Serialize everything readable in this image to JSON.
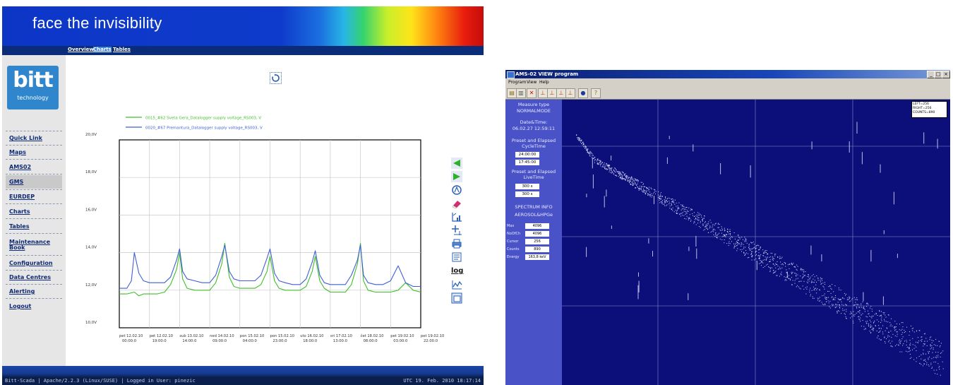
{
  "web": {
    "banner_title": "face the invisibility",
    "topnav": {
      "overview": "Overview",
      "charts": "Charts",
      "tables": "Tables"
    },
    "logo": {
      "main": "bitt",
      "sub": "technology"
    },
    "menu": [
      {
        "label": "Quick Link"
      },
      {
        "label": "Maps"
      },
      {
        "label": "AMS02"
      },
      {
        "label": "GMS"
      },
      {
        "label": "EURDEP"
      },
      {
        "label": "Charts"
      },
      {
        "label": "Tables"
      },
      {
        "label": "Maintenance Book"
      },
      {
        "label": "Configuration"
      },
      {
        "label": "Data Centres"
      },
      {
        "label": "Alerting"
      },
      {
        "label": "Logout"
      }
    ],
    "toolbar_log_label": "log",
    "status": {
      "left": "Bitt-Scada | Apache/2.2.3 (Linux/SUSE) | Logged in User: pinezic",
      "right": "UTC 19. Feb. 2010 18:17:14"
    }
  },
  "chart_data": {
    "type": "line",
    "title": "",
    "xlabel": "",
    "ylabel": "",
    "ylim": [
      10,
      20
    ],
    "yticks": [
      "20,0V",
      "18,0V",
      "16,0V",
      "14,0V",
      "12,0V",
      "10,0V"
    ],
    "ytick_values": [
      20,
      18,
      16,
      14,
      12,
      10
    ],
    "xticks": [
      [
        "pet 12.02.10",
        "00:00:0"
      ],
      [
        "pet 12.02.10",
        "19:00:0"
      ],
      [
        "sub 13.02.10",
        "14:00:0"
      ],
      [
        "ned 14.02.10",
        "09:00:0"
      ],
      [
        "pon 15.02.10",
        "04:00:0"
      ],
      [
        "pon 15.02.10",
        "23:00:0"
      ],
      [
        "uto 16.02.10",
        "18:00:0"
      ],
      [
        "sri 17.02.10",
        "13:00:0"
      ],
      [
        "čet 18.02.10",
        "08:00:0"
      ],
      [
        "pet 19.02.10",
        "03:00:0"
      ],
      [
        "pet 19.02.10",
        "22:00:0"
      ]
    ],
    "grid": true,
    "legend_position": "top-left",
    "series": [
      {
        "name": "0015_#62 Sveta Gera_Datalogger supply voltage_RS003, V",
        "color": "#3fbf2a",
        "x": [
          0,
          0.5,
          1.0,
          1.3,
          1.6,
          2.0,
          2.5,
          3.0,
          3.4,
          3.8,
          4.0,
          4.2,
          4.5,
          5.0,
          5.5,
          6.0,
          6.4,
          6.8,
          7.0,
          7.3,
          7.6,
          8.0,
          8.5,
          9.0,
          9.4,
          9.8,
          10.0,
          10.3,
          10.6,
          11.0,
          11.5,
          12.0,
          12.4,
          12.8,
          13.0,
          13.3,
          13.6,
          14.0,
          14.5,
          15.0,
          15.4,
          15.8,
          16.0,
          16.2,
          16.5,
          17.0,
          17.5,
          18.0,
          18.5,
          19.0,
          19.5,
          20.0
        ],
        "values": [
          11.8,
          11.8,
          11.9,
          11.7,
          11.8,
          11.8,
          11.8,
          11.9,
          12.3,
          13.1,
          14.0,
          12.6,
          12.1,
          12.0,
          12.0,
          12.0,
          12.4,
          13.4,
          14.5,
          12.7,
          12.2,
          12.1,
          12.1,
          12.1,
          12.3,
          13.0,
          13.8,
          12.5,
          12.1,
          12.0,
          12.0,
          12.0,
          12.2,
          13.0,
          13.8,
          12.5,
          12.1,
          11.9,
          11.9,
          11.9,
          12.3,
          13.4,
          14.5,
          12.5,
          12.0,
          11.9,
          11.9,
          11.9,
          12.0,
          12.4,
          12.0,
          11.9
        ]
      },
      {
        "name": "0020_#67 Premantura_Datalogger supply voltage_RS003, V",
        "color": "#3f5fd6",
        "x": [
          0,
          0.5,
          0.8,
          1.0,
          1.3,
          1.6,
          2.0,
          2.5,
          3.0,
          3.4,
          3.8,
          4.0,
          4.2,
          4.5,
          5.0,
          5.5,
          6.0,
          6.4,
          6.8,
          7.0,
          7.3,
          7.6,
          8.0,
          8.5,
          9.0,
          9.4,
          9.8,
          10.0,
          10.3,
          10.6,
          11.0,
          11.5,
          12.0,
          12.4,
          12.8,
          13.0,
          13.3,
          13.6,
          14.0,
          14.5,
          15.0,
          15.4,
          15.8,
          16.0,
          16.2,
          16.5,
          17.0,
          17.5,
          18.0,
          18.5,
          19.0,
          19.5,
          20.0
        ],
        "values": [
          12.1,
          12.1,
          12.5,
          14.0,
          12.9,
          12.5,
          12.4,
          12.4,
          12.4,
          12.7,
          13.6,
          14.2,
          13.0,
          12.6,
          12.5,
          12.4,
          12.4,
          12.8,
          13.8,
          14.4,
          13.0,
          12.6,
          12.5,
          12.5,
          12.5,
          12.8,
          13.7,
          14.2,
          12.9,
          12.5,
          12.4,
          12.3,
          12.3,
          12.6,
          13.5,
          14.1,
          12.8,
          12.4,
          12.3,
          12.3,
          12.3,
          12.8,
          13.6,
          14.4,
          12.8,
          12.4,
          12.3,
          12.3,
          12.5,
          13.3,
          12.4,
          12.2,
          12.2
        ]
      }
    ]
  },
  "ams": {
    "title": "AMS-02 VIEW program",
    "menu": [
      "Program",
      "View",
      "Help"
    ],
    "window_buttons": [
      "_",
      "□",
      "×"
    ],
    "panel": {
      "measure_type_label": "Measure type",
      "measure_type_value": "NORMALMODE",
      "datetime_label": "Date&Time:",
      "datetime_value": "06.02.27   12:59:11",
      "preset_cycle_label": "Preset and Elapsed CycleTime",
      "preset_cycle_value": "24:00:00",
      "elapsed_cycle_value": "17:45:00",
      "preset_live_label": "Preset and Elapsed LiveTime",
      "preset_live_value": "300 s",
      "elapsed_live_value": "300 s",
      "spectrum_info_label": "SPECTRUM INFO",
      "spectrum_info_value": "AEROSOL&HPGe",
      "rows": [
        {
          "label": "Max",
          "value": "4096"
        },
        {
          "label": "NoOfCh",
          "value": "4096"
        },
        {
          "label": "Cursor",
          "value": "256"
        },
        {
          "label": "Counts",
          "value": "890"
        },
        {
          "label": "Energy",
          "value": "163,8 keV"
        }
      ]
    },
    "info": [
      "LEFT=256",
      "RIGHT=256",
      "COUNTS=890"
    ]
  }
}
